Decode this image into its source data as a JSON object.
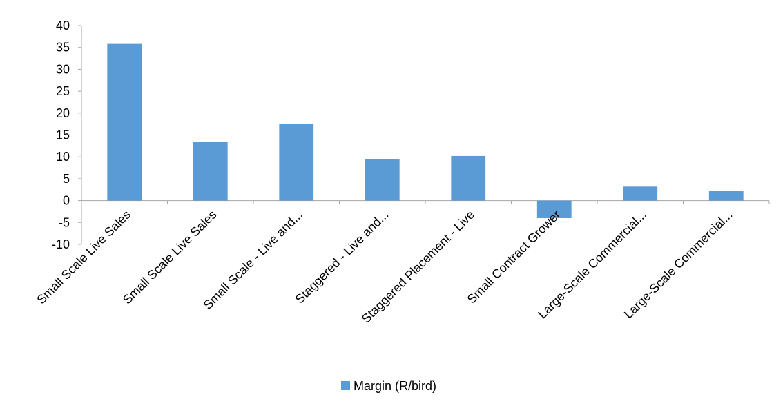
{
  "chart_data": {
    "type": "bar",
    "categories": [
      "Small Scale Live Sales",
      "Small Scale Live Sales",
      "Small Scale - Live and...",
      "Staggered - Live and...",
      "Staggered Placement - Live",
      "Small Contract Grower",
      "Large-Scale Commercial...",
      "Large-Scale Commercial..."
    ],
    "series": [
      {
        "name": "Margin (R/bird)",
        "values": [
          35.8,
          13.4,
          17.5,
          9.5,
          10.2,
          -4.0,
          3.2,
          2.2
        ]
      }
    ],
    "ylim": [
      -10,
      40
    ],
    "yticks": [
      -10,
      -5,
      0,
      5,
      10,
      15,
      20,
      25,
      30,
      35,
      40
    ],
    "grid": false,
    "legend_position": "bottom",
    "colors": {
      "bar": "#5b9bd5",
      "axis": "#a6a6a6"
    }
  }
}
